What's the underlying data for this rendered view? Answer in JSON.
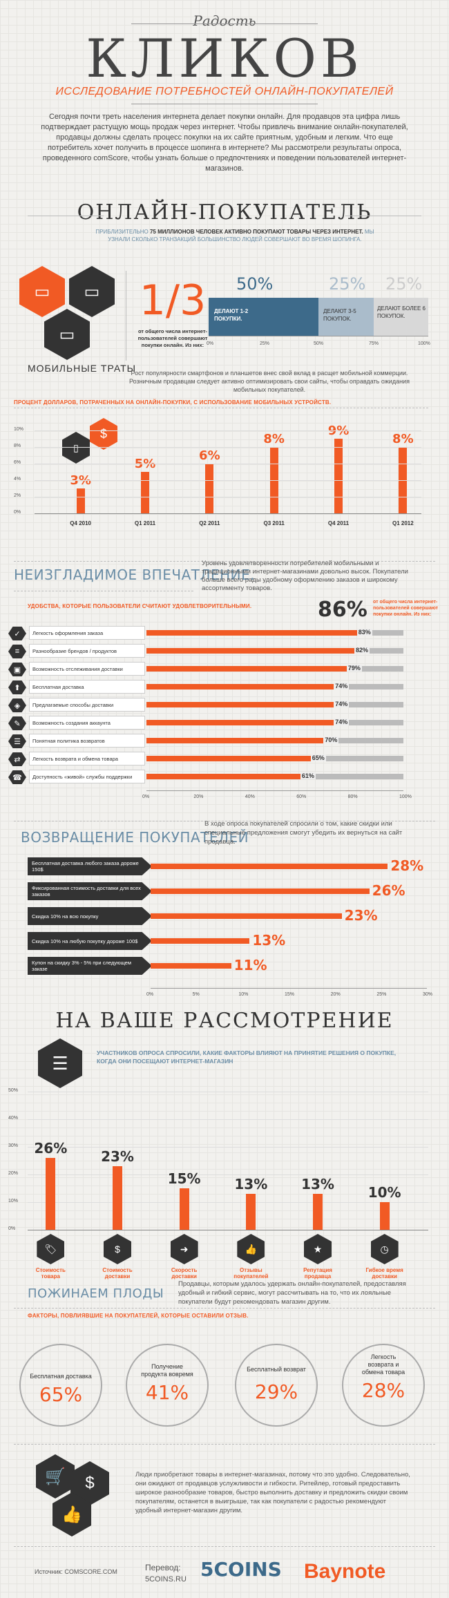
{
  "header": {
    "pre_title": "Радость",
    "title": "КЛИКОВ",
    "subtitle": "ИССЛЕДОВАНИЕ ПОТРЕБНОСТЕЙ ОНЛАЙН-ПОКУПАТЕЛЕЙ",
    "intro": "Сегодня почти треть населения интернета делает покупки онлайн. Для продавцов эта цифра лишь подтверждает растущую мощь продаж через интернет. Чтобы привлечь внимание онлайн-покупателей, продавцы должны сделать процесс покупки на их сайте приятным, удобным и легким. Что еще потребитель хочет получить в процессе шопинга в интернете? Мы рассмотрели результаты опроса, проведенного comScore, чтобы узнать больше о предпочтениях и поведении пользователей интернет-магазинов."
  },
  "online_buyer": {
    "title": "ОНЛАЙН-ПОКУПАТЕЛЬ",
    "lead_gray1": "ПРИБЛИЗИТЕЛЬНО ",
    "lead_bold": "75 МИЛЛИОНОВ ЧЕЛОВЕК АКТИВНО ПОКУПАЮТ ТОВАРЫ ЧЕРЕЗ ИНТЕРНЕТ.",
    "lead_gray2": " МЫ УЗНАЛИ СКОЛЬКО ТРАНЗАКЦИЙ БОЛЬШИНСТВО ЛЮДЕЙ СОВЕРШАЮТ ВО ВРЕМЯ ШОПИНГА.",
    "fraction": "1/3",
    "fraction_caption": "от общего числа интернет-пользователей совершают покупки онлайн. Из них:",
    "segments": [
      {
        "pct": "50%",
        "label": "ДЕЛАЮТ 1-2 ПОКУПКИ.",
        "share": 50,
        "color": "#3d6a8a"
      },
      {
        "pct": "25%",
        "label": "ДЕЛАЮТ 3-5 ПОКУПОК.",
        "share": 25,
        "color": "#aabccb"
      },
      {
        "pct": "25%",
        "label": "ДЕЛАЮТ БОЛЕЕ 6 ПОКУПОК.",
        "share": 25,
        "color": "#d8d8d8"
      }
    ],
    "axis_ticks": [
      "0%",
      "25%",
      "50%",
      "75%",
      "100%"
    ]
  },
  "mobile": {
    "title": "МОБИЛЬНЫЕ ТРАТЫ",
    "text": "Рост популярности смартфонов и планшетов внес свой вклад в расщет мобильной коммерции. Розничным продавцам следует активно оптимизировать свои сайты, чтобы оправдать ожидания мобильных покупателей.",
    "note": "ПРОЦЕНТ ДОЛЛАРОВ, ПОТРАЧЕННЫХ НА ОНЛАЙН-ПОКУПКИ, С ИСПОЛЬЗОВАНИЕ МОБИЛЬНЫХ УСТРОЙСТВ.",
    "y_ticks": [
      "10%",
      "8%",
      "6%",
      "4%",
      "2%",
      "0%"
    ]
  },
  "chart_data": {
    "type": "bar",
    "categories": [
      "Q4 2010",
      "Q1 2011",
      "Q2 2011",
      "Q3 2011",
      "Q4 2011",
      "Q1 2012"
    ],
    "values": [
      3,
      5,
      6,
      8,
      9,
      8
    ],
    "labels": [
      "3%",
      "5%",
      "6%",
      "8%",
      "9%",
      "8%"
    ],
    "ylim": [
      0,
      10
    ]
  },
  "impression": {
    "title": "НЕИЗГЛАДИМОЕ ВПЕЧАТЛЕНИЕ.",
    "text": "Уровень удовлетворенности потребителей мобильными и традиционными интернет-магазинами довольно высок. Покупатели больше всего рады удобному оформлению заказов и широкому ассортименту товаров.",
    "big": "86%",
    "big_caption": "от общего числа интернет-пользователей совершают покупки онлайн. Из них:",
    "note": "УДОБСТВА, КОТОРЫЕ ПОЛЬЗОВАТЕЛИ СЧИТАЮТ УДОВЛЕТВОРИТЕЛЬНЫМИ.",
    "rows": [
      {
        "label": "Легкость оформления заказа",
        "value": 83,
        "text": "83%",
        "icon": "✓"
      },
      {
        "label": "Разнообразие брендов / продуктов",
        "value": 82,
        "text": "82%",
        "icon": "≡"
      },
      {
        "label": "Возможность отслеживания доставки",
        "value": 79,
        "text": "79%",
        "icon": "▣"
      },
      {
        "label": "Бесплатная доставка",
        "value": 74,
        "text": "74%",
        "icon": "⬆"
      },
      {
        "label": "Предлагаемые способы доставки",
        "value": 74,
        "text": "74%",
        "icon": "◈"
      },
      {
        "label": "Возможность создания аккаунта",
        "value": 74,
        "text": "74%",
        "icon": "✎"
      },
      {
        "label": "Понятная политика возвратов",
        "value": 70,
        "text": "70%",
        "icon": "☰"
      },
      {
        "label": "Легкость возврата и обмена товара",
        "value": 65,
        "text": "65%",
        "icon": "⇄"
      },
      {
        "label": "Доступность «живой» службы поддержки",
        "value": 61,
        "text": "61%",
        "icon": "☎"
      }
    ],
    "x_ticks": [
      "0%",
      "20%",
      "40%",
      "60%",
      "80%",
      "100%"
    ]
  },
  "return": {
    "title": "ВОЗВРАЩЕНИЕ ПОКУПАТЕЛЕЙ",
    "text": "В ходе опроса покупателей спросили о том, какие скидки или специальные предложения смогут убедить их вернуться на сайт продавца.",
    "rows": [
      {
        "label": "Бесплатная доставка любого заказа дороже 150$",
        "value": 28,
        "text": "28%"
      },
      {
        "label": "Фиксированная стоимость доставки для всех заказов",
        "value": 26,
        "text": "26%"
      },
      {
        "label": "Скидка 10% на всю покупку",
        "value": 23,
        "text": "23%"
      },
      {
        "label": "Скидка 10% на любую покупку дороже 100$",
        "value": 13,
        "text": "13%"
      },
      {
        "label": "Купон на скидку 3% - 5% при следующем заказе",
        "value": 11,
        "text": "11%"
      }
    ],
    "x_ticks": [
      "0%",
      "5%",
      "10%",
      "15%",
      "20%",
      "25%",
      "30%"
    ]
  },
  "consider": {
    "title": "НА ВАШЕ РАССМОТРЕНИЕ",
    "note": "УЧАСТНИКОВ ОПРОСА СПРОСИЛИ, КАКИЕ ФАКТОРЫ ВЛИЯЮТ НА ПРИНЯТИЕ РЕШЕНИЯ О ПОКУПКЕ, КОГДА ОНИ ПОСЕЩАЮТ ИНТЕРНЕТ-МАГАЗИН",
    "y_ticks": [
      "50%",
      "40%",
      "30%",
      "20%",
      "10%",
      "0%"
    ],
    "bars": [
      {
        "value": 26,
        "text": "26%",
        "label": "Стоимость товара",
        "icon": "🏷"
      },
      {
        "value": 23,
        "text": "23%",
        "label": "Стоимость доставки",
        "icon": "$"
      },
      {
        "value": 15,
        "text": "15%",
        "label": "Скорость доставки",
        "icon": "➜"
      },
      {
        "value": 13,
        "text": "13%",
        "label": "Отзывы покупателей",
        "icon": "👍"
      },
      {
        "value": 13,
        "text": "13%",
        "label": "Репутация продавца",
        "icon": "★"
      },
      {
        "value": 10,
        "text": "10%",
        "label": "Гибкое время доставки",
        "icon": "◷"
      }
    ]
  },
  "fruits": {
    "title": "ПОЖИНАЕМ ПЛОДЫ",
    "text": "Продавцы, которым удалось удержать онлайн-покупателей, предоставляя удобный и гибкий сервис, могут рассчитывать на то, что их лояльные покупатели будут рекомендовать магазин другим.",
    "note": "ФАКТОРЫ, ПОВЛИЯВШИЕ НА ПОКУПАТЕЛЕЙ, КОТОРЫЕ ОСТАВИЛИ ОТЗЫВ.",
    "circles": [
      {
        "label": "Бесплатная доставка",
        "value": "65%"
      },
      {
        "label": "Получение продукта вовремя",
        "value": "41%"
      },
      {
        "label": "Бесплатный возврат",
        "value": "29%"
      },
      {
        "label": "Легкость возврата и обмена товара",
        "value": "28%"
      }
    ]
  },
  "footer": {
    "text": "Люди приобретают товары в интернет-магазинах, потому что это удобно. Следовательно, они ожидают от продавцов услужливости и гибкости. Ритейлер, готовый предоставить широкое разнообразие товаров, быстро выполнить доставку и предложить скидки своим покупателям, останется в выигрыше, так как покупатели с радостью рекомендуют удобный интернет-магазин другим.",
    "source": "Источник: COMSCORE.COM",
    "translation_label": "Перевод:",
    "translation_site": "5COINS.RU",
    "logo1": "5COINS",
    "logo2": "Baynote"
  }
}
